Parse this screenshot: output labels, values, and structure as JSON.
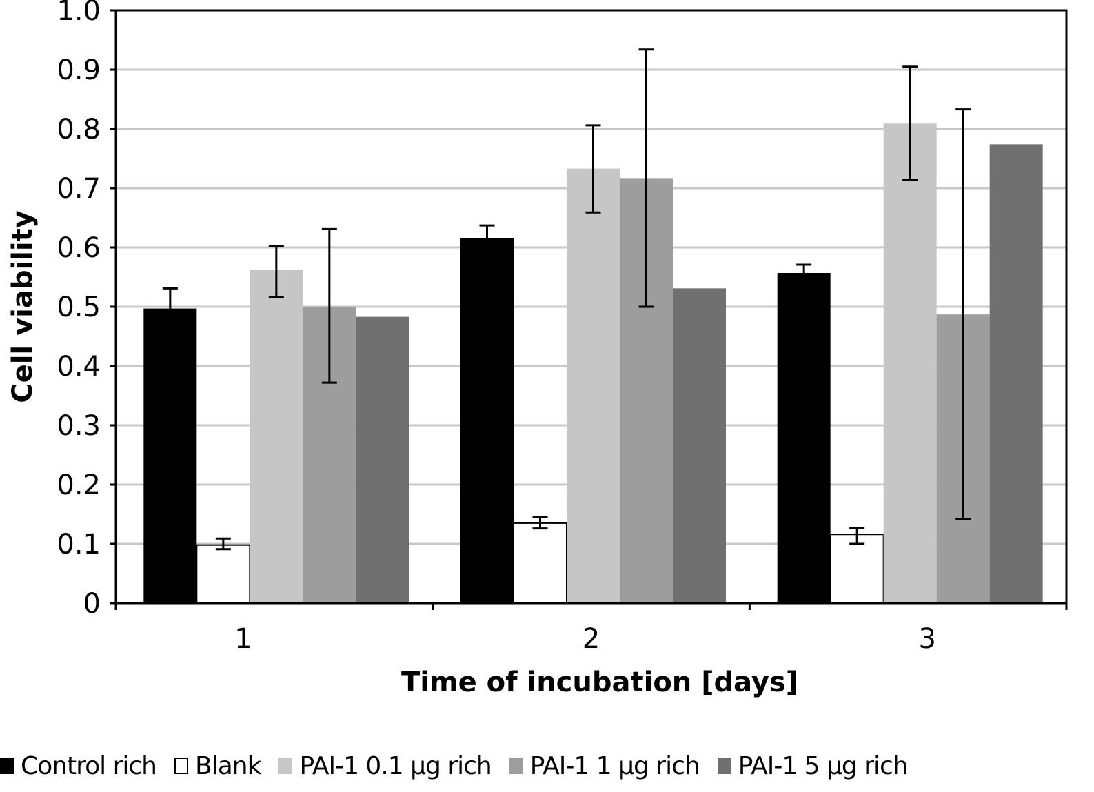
{
  "chart_data": {
    "type": "bar",
    "title": "",
    "xlabel": "Time of incubation [days]",
    "ylabel": "Cell viability",
    "ylim": [
      0,
      1.0
    ],
    "yticks": [
      "0",
      "0.1",
      "0.2",
      "0.3",
      "0.4",
      "0.5",
      "0.6",
      "0.7",
      "0.8",
      "0.9",
      "1.0"
    ],
    "ytick_values": [
      0,
      0.1,
      0.2,
      0.3,
      0.4,
      0.5,
      0.6,
      0.7,
      0.8,
      0.9,
      1.0
    ],
    "grid": "horizontal",
    "categories": [
      "1",
      "2",
      "3"
    ],
    "legend_position": "bottom",
    "series": [
      {
        "name": "Control rich",
        "color": "#000000",
        "border": "#000000",
        "values": [
          0.497,
          0.616,
          0.557
        ],
        "err_upper": [
          0.531,
          0.637,
          0.571
        ],
        "err_lower": [
          null,
          null,
          null
        ]
      },
      {
        "name": "Blank",
        "color": "#ffffff",
        "border": "#000000",
        "values": [
          0.098,
          0.135,
          0.116
        ],
        "err_upper": [
          0.109,
          0.145,
          0.127
        ],
        "err_lower": [
          0.091,
          0.126,
          0.1
        ]
      },
      {
        "name": "PAI-1 0.1 µg rich",
        "color": "#c6c6c6",
        "border": "#c6c6c6",
        "values": [
          0.562,
          0.733,
          0.809
        ],
        "err_upper": [
          0.602,
          0.806,
          0.905
        ],
        "err_lower": [
          0.516,
          0.659,
          0.714
        ]
      },
      {
        "name": "PAI-1 1 µg rich",
        "color": "#9d9d9d",
        "border": "#9d9d9d",
        "values": [
          0.5,
          0.717,
          0.487
        ],
        "err_upper": [
          0.631,
          0.934,
          0.833
        ],
        "err_lower": [
          0.372,
          0.5,
          0.142
        ]
      },
      {
        "name": "PAI-1 5 µg rich",
        "color": "#707070",
        "border": "#707070",
        "values": [
          0.483,
          0.531,
          0.774
        ],
        "err_upper": [
          null,
          null,
          null
        ],
        "err_lower": [
          null,
          null,
          null
        ]
      }
    ]
  },
  "colors": {
    "axis": "#000000",
    "grid": "#c8c8c8"
  }
}
